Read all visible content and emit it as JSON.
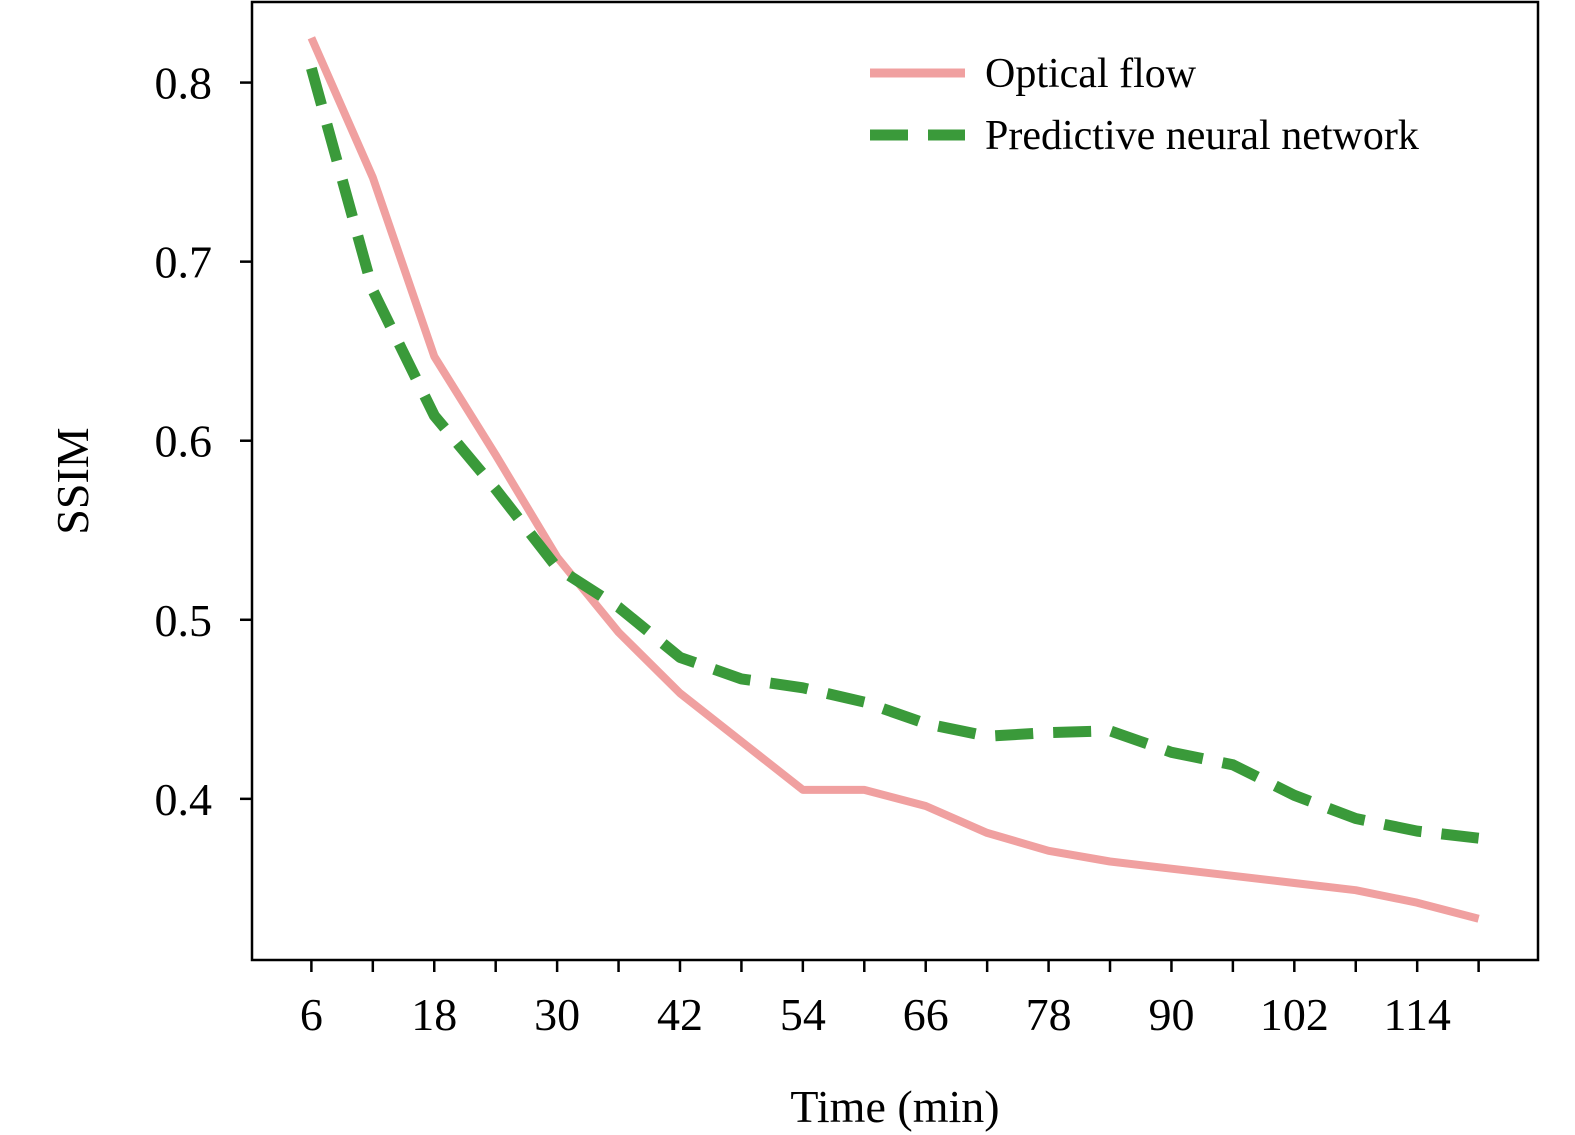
{
  "chart_data": {
    "type": "line",
    "title": "",
    "xlabel": "Time (min)",
    "ylabel": "SSIM",
    "xlim": [
      0.2,
      125.8
    ],
    "ylim": [
      0.31,
      0.845
    ],
    "x_ticks": [
      6,
      12,
      18,
      24,
      30,
      36,
      42,
      48,
      54,
      60,
      66,
      72,
      78,
      84,
      90,
      96,
      102,
      108,
      114,
      120
    ],
    "x_tick_labels": [
      "6",
      "18",
      "30",
      "42",
      "54",
      "66",
      "78",
      "90",
      "102",
      "114"
    ],
    "x_tick_label_values": [
      6,
      18,
      30,
      42,
      54,
      66,
      78,
      90,
      102,
      114
    ],
    "y_ticks": [
      0.4,
      0.5,
      0.6,
      0.7,
      0.8
    ],
    "y_tick_labels": [
      "0.4",
      "0.5",
      "0.6",
      "0.7",
      "0.8"
    ],
    "grid": false,
    "legend_position": "top-right",
    "x": [
      6,
      12,
      18,
      24,
      30,
      36,
      42,
      48,
      54,
      60,
      66,
      72,
      78,
      84,
      90,
      96,
      102,
      108,
      114,
      120
    ],
    "series": [
      {
        "name": "Optical flow",
        "color": "#f0a0a0",
        "style": "solid",
        "values": [
          0.825,
          0.747,
          0.647,
          0.592,
          0.535,
          0.493,
          0.459,
          0.432,
          0.405,
          0.405,
          0.396,
          0.381,
          0.371,
          0.365,
          0.361,
          0.357,
          0.353,
          0.349,
          0.342,
          0.333
        ]
      },
      {
        "name": "Predictive neural network",
        "color": "#3a9a3a",
        "style": "dashed",
        "values": [
          0.808,
          0.684,
          0.614,
          0.573,
          0.529,
          0.507,
          0.479,
          0.467,
          0.462,
          0.454,
          0.442,
          0.435,
          0.437,
          0.438,
          0.426,
          0.419,
          0.402,
          0.389,
          0.382,
          0.378
        ]
      }
    ]
  }
}
